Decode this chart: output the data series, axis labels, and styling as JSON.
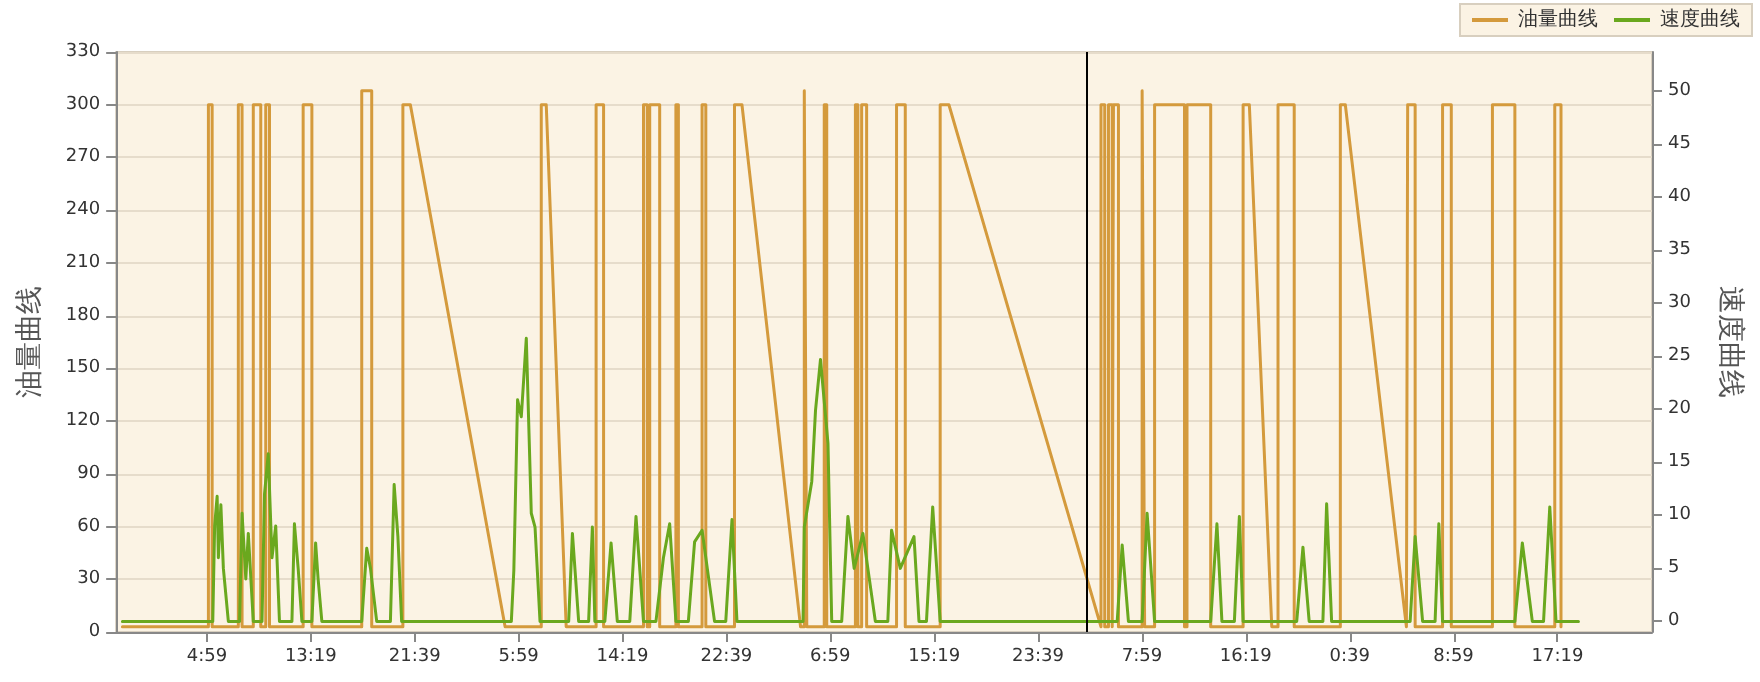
{
  "chart_data": {
    "type": "line",
    "ylabel": "油量曲线",
    "y2label": "速度曲线",
    "xlim": [
      "--01-01T21:42",
      "--01-07T00:54"
    ],
    "ylim": [
      0,
      330
    ],
    "y2lim": [
      -1,
      53.7
    ],
    "xticks": [
      {
        "value": "--01-02T04:59",
        "label": "4:59"
      },
      {
        "value": "--01-02T13:19",
        "label": "13:19"
      },
      {
        "value": "--01-02T21:39",
        "label": "21:39"
      },
      {
        "value": "--01-03T05:59",
        "label": "5:59"
      },
      {
        "value": "--01-03T14:19",
        "label": "14:19"
      },
      {
        "value": "--01-03T22:39",
        "label": "22:39"
      },
      {
        "value": "--01-04T06:59",
        "label": "6:59"
      },
      {
        "value": "--01-04T15:19",
        "label": "15:19"
      },
      {
        "value": "--01-04T23:39",
        "label": "23:39"
      },
      {
        "value": "--01-05T07:59",
        "label": "7:59"
      },
      {
        "value": "--01-05T16:19",
        "label": "16:19"
      },
      {
        "value": "--01-06T00:39",
        "label": "0:39"
      },
      {
        "value": "--01-06T08:59",
        "label": "8:59"
      },
      {
        "value": "--01-06T17:19",
        "label": "17:19"
      }
    ],
    "yticks": [
      0,
      30,
      60,
      90,
      120,
      150,
      180,
      210,
      240,
      270,
      300,
      330
    ],
    "y2ticks": [
      0,
      5,
      10,
      15,
      20,
      25,
      30,
      35,
      40,
      45,
      50
    ],
    "grid": "y",
    "legend": "top right",
    "marker": "none",
    "line_style": "solid",
    "ref_lines": [
      {
        "axis": "x",
        "value": "--01-05T03:30",
        "color": "#000000"
      }
    ],
    "series": [
      {
        "name": "油量曲线",
        "color": "#d49a3c",
        "x": [
          "--01-01T22:12",
          "--01-02T05:06",
          "--01-02T05:06",
          "--01-02T05:24",
          "--01-02T05:24",
          "--01-02T07:30",
          "--01-02T07:30",
          "--01-02T07:48",
          "--01-02T07:48",
          "--01-02T08:42",
          "--01-02T08:42",
          "--01-02T09:18",
          "--01-02T09:18",
          "--01-02T09:42",
          "--01-02T09:42",
          "--01-02T10:00",
          "--01-02T10:00",
          "--01-02T12:42",
          "--01-02T12:42",
          "--01-02T13:24",
          "--01-02T13:24",
          "--01-02T17:24",
          "--01-02T17:24",
          "--01-02T18:12",
          "--01-02T18:12",
          "--01-02T20:42",
          "--01-02T20:42",
          "--01-02T21:18",
          "--01-03T04:54",
          "--01-03T07:48",
          "--01-03T07:48",
          "--01-03T08:12",
          "--01-03T09:48",
          "--01-03T12:12",
          "--01-03T12:12",
          "--01-03T12:48",
          "--01-03T12:48",
          "--01-03T16:00",
          "--01-03T16:00",
          "--01-03T16:18",
          "--01-03T16:18",
          "--01-03T16:30",
          "--01-03T16:30",
          "--01-03T17:18",
          "--01-03T17:18",
          "--01-03T18:36",
          "--01-03T18:36",
          "--01-03T18:48",
          "--01-03T18:48",
          "--01-03T20:42",
          "--01-03T20:42",
          "--01-03T21:00",
          "--01-03T21:00",
          "--01-03T23:18",
          "--01-03T23:18",
          "--01-03T23:54",
          "--01-04T04:36",
          "--01-04T04:54",
          "--01-04T04:54",
          "--01-04T05:06",
          "--01-04T06:30",
          "--01-04T06:30",
          "--01-04T06:42",
          "--01-04T06:42",
          "--01-04T09:00",
          "--01-04T09:00",
          "--01-04T09:12",
          "--01-04T09:12",
          "--01-04T09:30",
          "--01-04T09:30",
          "--01-04T09:54",
          "--01-04T09:54",
          "--01-04T12:18",
          "--01-04T12:18",
          "--01-04T13:00",
          "--01-04T13:00",
          "--01-04T15:48",
          "--01-04T15:48",
          "--01-04T16:30",
          "--01-05T04:42",
          "--01-05T04:42",
          "--01-05T05:00",
          "--01-05T05:00",
          "--01-05T05:18",
          "--01-05T05:18",
          "--01-05T05:36",
          "--01-05T05:36",
          "--01-05T05:42",
          "--01-05T05:42",
          "--01-05T06:06",
          "--01-05T06:06",
          "--01-05T08:00",
          "--01-05T08:00",
          "--01-05T08:12",
          "--01-05T09:00",
          "--01-05T09:00",
          "--01-05T11:24",
          "--01-05T11:24",
          "--01-05T11:36",
          "--01-05T11:36",
          "--01-05T13:30",
          "--01-05T13:30",
          "--01-05T16:06",
          "--01-05T16:06",
          "--01-05T16:36",
          "--01-05T18:24",
          "--01-05T18:54",
          "--01-05T18:54",
          "--01-05T20:12",
          "--01-05T20:12",
          "--01-05T23:54",
          "--01-05T23:54",
          "--01-06T00:18",
          "--01-06T05:12",
          "--01-06T05:18",
          "--01-06T05:18",
          "--01-06T05:54",
          "--01-06T05:54",
          "--01-06T08:06",
          "--01-06T08:06",
          "--01-06T08:48",
          "--01-06T08:48",
          "--01-06T12:06",
          "--01-06T12:06",
          "--01-06T13:54",
          "--01-06T13:54",
          "--01-06T17:06",
          "--01-06T17:06",
          "--01-06T17:36",
          "--01-06T17:36"
        ],
        "values": [
          3,
          3,
          300,
          300,
          3,
          3,
          300,
          300,
          3,
          3,
          300,
          300,
          3,
          3,
          300,
          300,
          3,
          3,
          300,
          300,
          3,
          3,
          308,
          308,
          3,
          3,
          300,
          300,
          3,
          3,
          300,
          300,
          3,
          3,
          300,
          300,
          3,
          3,
          300,
          300,
          3,
          3,
          300,
          300,
          3,
          3,
          300,
          300,
          3,
          3,
          300,
          300,
          3,
          3,
          300,
          300,
          3,
          3,
          308,
          3,
          3,
          300,
          300,
          3,
          3,
          300,
          300,
          3,
          3,
          300,
          300,
          3,
          3,
          300,
          300,
          3,
          3,
          300,
          300,
          3,
          300,
          300,
          3,
          3,
          300,
          300,
          3,
          3,
          300,
          300,
          3,
          3,
          308,
          3,
          3,
          300,
          300,
          3,
          3,
          300,
          300,
          3,
          3,
          300,
          300,
          3,
          3,
          300,
          300,
          3,
          3,
          300,
          300,
          3,
          3,
          300,
          300,
          3,
          3,
          300,
          300,
          3,
          3,
          300,
          300,
          3,
          3,
          300,
          300,
          3
        ]
      },
      {
        "name": "速度曲线",
        "color": "#6aa81e",
        "axis": "y2",
        "x": [
          "--01-01T22:12",
          "--01-02T05:27",
          "--01-02T05:36",
          "--01-02T05:48",
          "--01-02T05:54",
          "--01-02T06:06",
          "--01-02T06:18",
          "--01-02T06:42",
          "--01-02T07:36",
          "--01-02T07:48",
          "--01-02T08:06",
          "--01-02T08:18",
          "--01-02T08:42",
          "--01-02T09:24",
          "--01-02T09:36",
          "--01-02T09:54",
          "--01-02T10:12",
          "--01-02T10:30",
          "--01-02T10:48",
          "--01-02T11:48",
          "--01-02T12:00",
          "--01-02T12:18",
          "--01-02T12:36",
          "--01-02T13:24",
          "--01-02T13:42",
          "--01-02T13:54",
          "--01-02T14:12",
          "--01-02T17:24",
          "--01-02T17:48",
          "--01-02T18:06",
          "--01-02T18:36",
          "--01-02T19:42",
          "--01-02T20:00",
          "--01-02T20:18",
          "--01-02T20:36",
          "--01-03T05:24",
          "--01-03T05:36",
          "--01-03T05:54",
          "--01-03T06:12",
          "--01-03T06:36",
          "--01-03T07:00",
          "--01-03T07:18",
          "--01-03T07:42",
          "--01-03T10:00",
          "--01-03T10:18",
          "--01-03T10:48",
          "--01-03T11:36",
          "--01-03T11:54",
          "--01-03T12:06",
          "--01-03T12:54",
          "--01-03T13:24",
          "--01-03T13:54",
          "--01-03T14:54",
          "--01-03T15:24",
          "--01-03T16:00",
          "--01-03T17:00",
          "--01-03T17:36",
          "--01-03T18:06",
          "--01-03T18:36",
          "--01-03T19:36",
          "--01-03T20:06",
          "--01-03T20:42",
          "--01-03T21:42",
          "--01-03T22:36",
          "--01-03T23:06",
          "--01-03T23:30",
          "--01-04T04:48",
          "--01-04T04:54",
          "--01-04T05:30",
          "--01-04T05:48",
          "--01-04T06:12",
          "--01-04T06:48",
          "--01-04T07:06",
          "--01-04T07:54",
          "--01-04T08:24",
          "--01-04T08:54",
          "--01-04T09:36",
          "--01-04T10:36",
          "--01-04T11:36",
          "--01-04T11:54",
          "--01-04T12:36",
          "--01-04T13:42",
          "--01-04T14:06",
          "--01-04T14:42",
          "--01-04T15:12",
          "--01-04T15:48",
          "--01-05T06:00",
          "--01-05T06:24",
          "--01-05T06:54",
          "--01-05T08:00",
          "--01-05T08:24",
          "--01-05T09:00",
          "--01-05T13:30",
          "--01-05T14:00",
          "--01-05T14:24",
          "--01-05T15:24",
          "--01-05T15:48",
          "--01-05T16:06",
          "--01-05T20:24",
          "--01-05T20:54",
          "--01-05T21:24",
          "--01-05T22:30",
          "--01-05T22:48",
          "--01-05T23:12",
          "--01-06T05:30",
          "--01-06T05:54",
          "--01-06T06:30",
          "--01-06T07:30",
          "--01-06T07:48",
          "--01-06T08:06",
          "--01-06T13:54",
          "--01-06T14:30",
          "--01-06T15:18",
          "--01-06T16:12",
          "--01-06T16:42",
          "--01-06T17:12",
          "--01-06T19:00"
        ],
        "values": [
          0,
          0,
          9,
          11.8,
          6,
          11,
          5,
          0,
          0,
          10.2,
          4,
          8.3,
          0,
          0,
          12,
          15.8,
          6,
          9,
          0,
          0,
          9.2,
          5,
          0,
          0,
          7.4,
          4,
          0,
          0,
          6.9,
          5,
          0,
          0,
          12.9,
          8,
          0,
          0,
          4.8,
          20.9,
          19.3,
          26.7,
          10.2,
          8.9,
          0,
          0,
          8.3,
          0,
          0,
          8.9,
          0,
          0,
          7.4,
          0,
          0,
          9.9,
          0,
          0,
          6,
          9.2,
          0,
          0,
          7.5,
          8.6,
          0,
          0,
          9.6,
          0,
          0,
          8.9,
          13.2,
          19.9,
          24.7,
          16.8,
          0,
          0,
          9.9,
          5,
          8.3,
          0,
          0,
          8.6,
          5,
          8,
          0,
          0,
          10.8,
          0,
          0,
          7.2,
          0,
          0,
          10.2,
          0,
          0,
          9.2,
          0,
          0,
          9.9,
          0,
          0,
          7.0,
          0,
          0,
          11.1,
          0,
          0,
          8.0,
          0,
          0,
          9.2,
          0,
          0,
          7.4,
          0,
          0,
          10.8,
          0,
          0
        ]
      }
    ]
  }
}
